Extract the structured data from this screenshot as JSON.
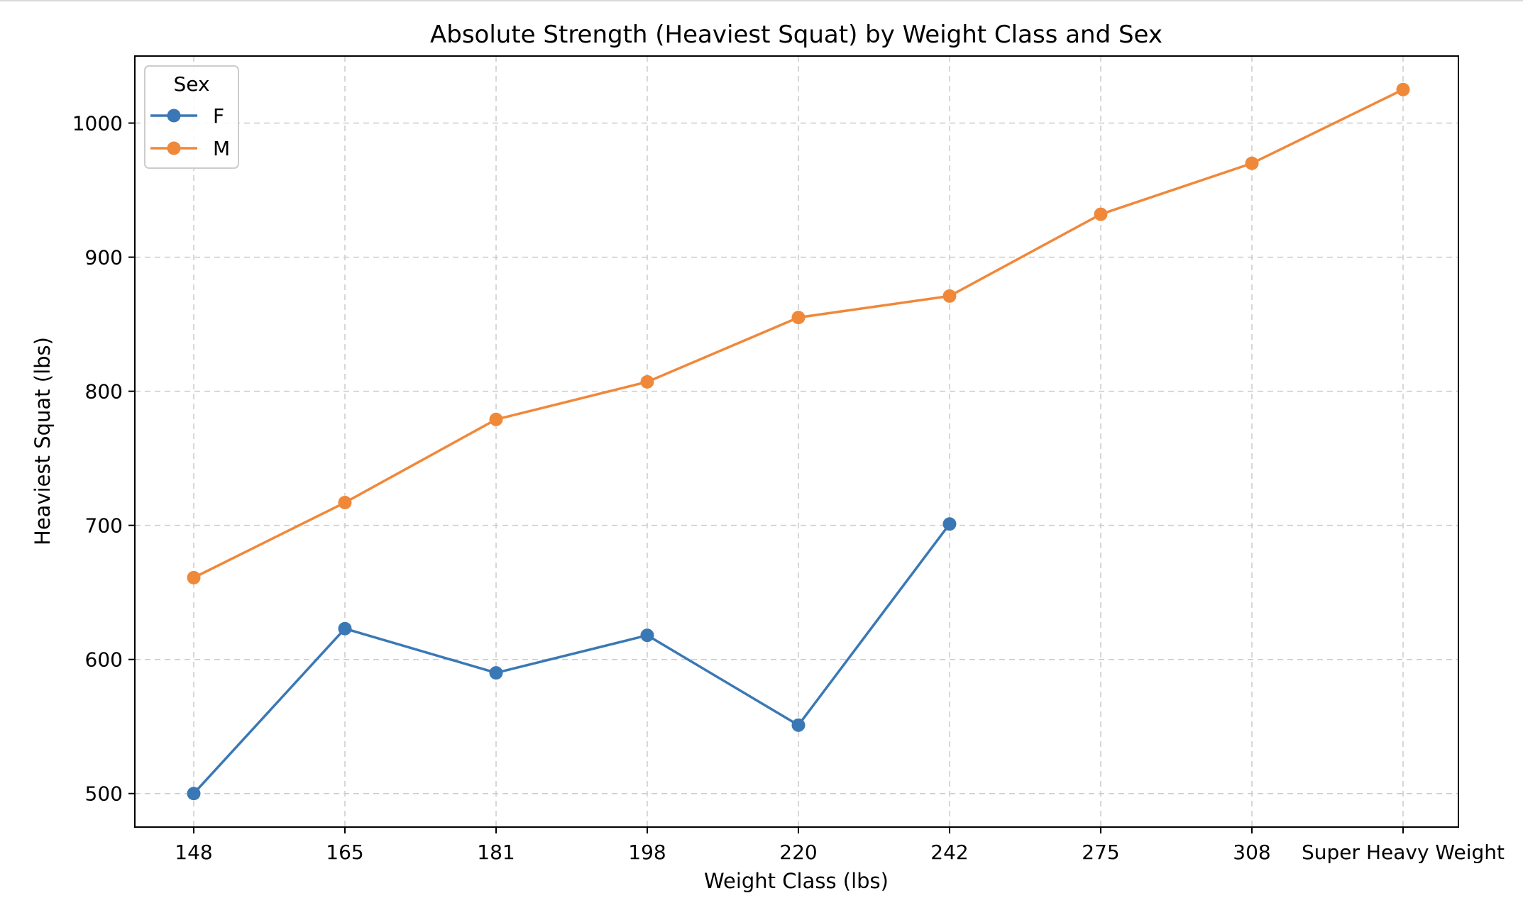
{
  "chart_data": {
    "type": "line",
    "title": "Absolute Strength (Heaviest Squat) by Weight Class and Sex",
    "xlabel": "Weight Class (lbs)",
    "ylabel": "Heaviest Squat (lbs)",
    "categories": [
      "148",
      "165",
      "181",
      "198",
      "220",
      "242",
      "275",
      "308",
      "Super Heavy Weight"
    ],
    "ylim": [
      475,
      1050
    ],
    "yticks": [
      500,
      600,
      700,
      800,
      900,
      1000
    ],
    "grid": true,
    "legend": {
      "title": "Sex",
      "placement": "top-left"
    },
    "series": [
      {
        "name": "F",
        "color": "#3a78b5",
        "values": [
          500,
          623,
          590,
          618,
          551,
          701,
          null,
          null,
          null
        ]
      },
      {
        "name": "M",
        "color": "#f0883a",
        "values": [
          661,
          717,
          779,
          807,
          855,
          871,
          932,
          970,
          1025
        ]
      }
    ]
  }
}
